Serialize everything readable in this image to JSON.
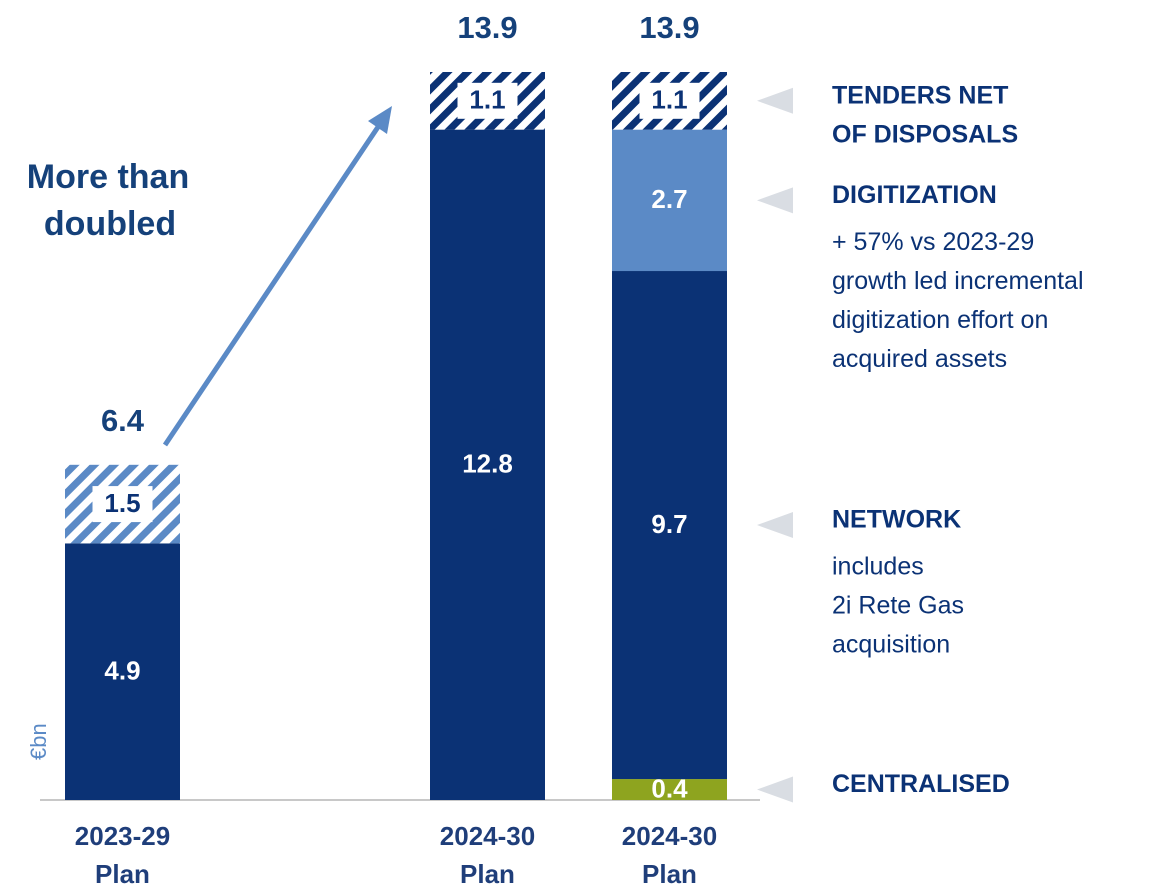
{
  "chart_data": {
    "type": "stacked-bar",
    "unit": "€bn",
    "annotation": [
      "More than",
      "doubled"
    ],
    "categories": [
      [
        "2023-29",
        "Plan"
      ],
      [
        "2024-30",
        "Plan"
      ],
      [
        "2024-30",
        "Plan"
      ]
    ],
    "totals": [
      6.4,
      13.9,
      13.9
    ],
    "series": [
      {
        "name": [
          "CENTRALISED"
        ],
        "color": "#8ea41f",
        "values": [
          null,
          null,
          0.4
        ]
      },
      {
        "name": [
          "NETWORK"
        ],
        "note": [
          "includes",
          "2i Rete Gas",
          "acquisition"
        ],
        "color": "#0b3275",
        "values": [
          4.9,
          12.8,
          9.7
        ]
      },
      {
        "name": [
          "DIGITIZATION"
        ],
        "note": [
          "+ 57% vs 2023-29",
          "growth led incremental",
          "digitization effort on",
          "acquired assets"
        ],
        "color": "#5b8ac6",
        "values": [
          null,
          null,
          2.7
        ]
      },
      {
        "name": [
          "TENDERS NET",
          "OF DISPOSALS"
        ],
        "colors": [
          "#5b8ac6",
          "#0b3275",
          "#0b3275"
        ],
        "pattern": "hatch",
        "values": [
          1.5,
          1.1,
          1.1
        ]
      }
    ]
  }
}
